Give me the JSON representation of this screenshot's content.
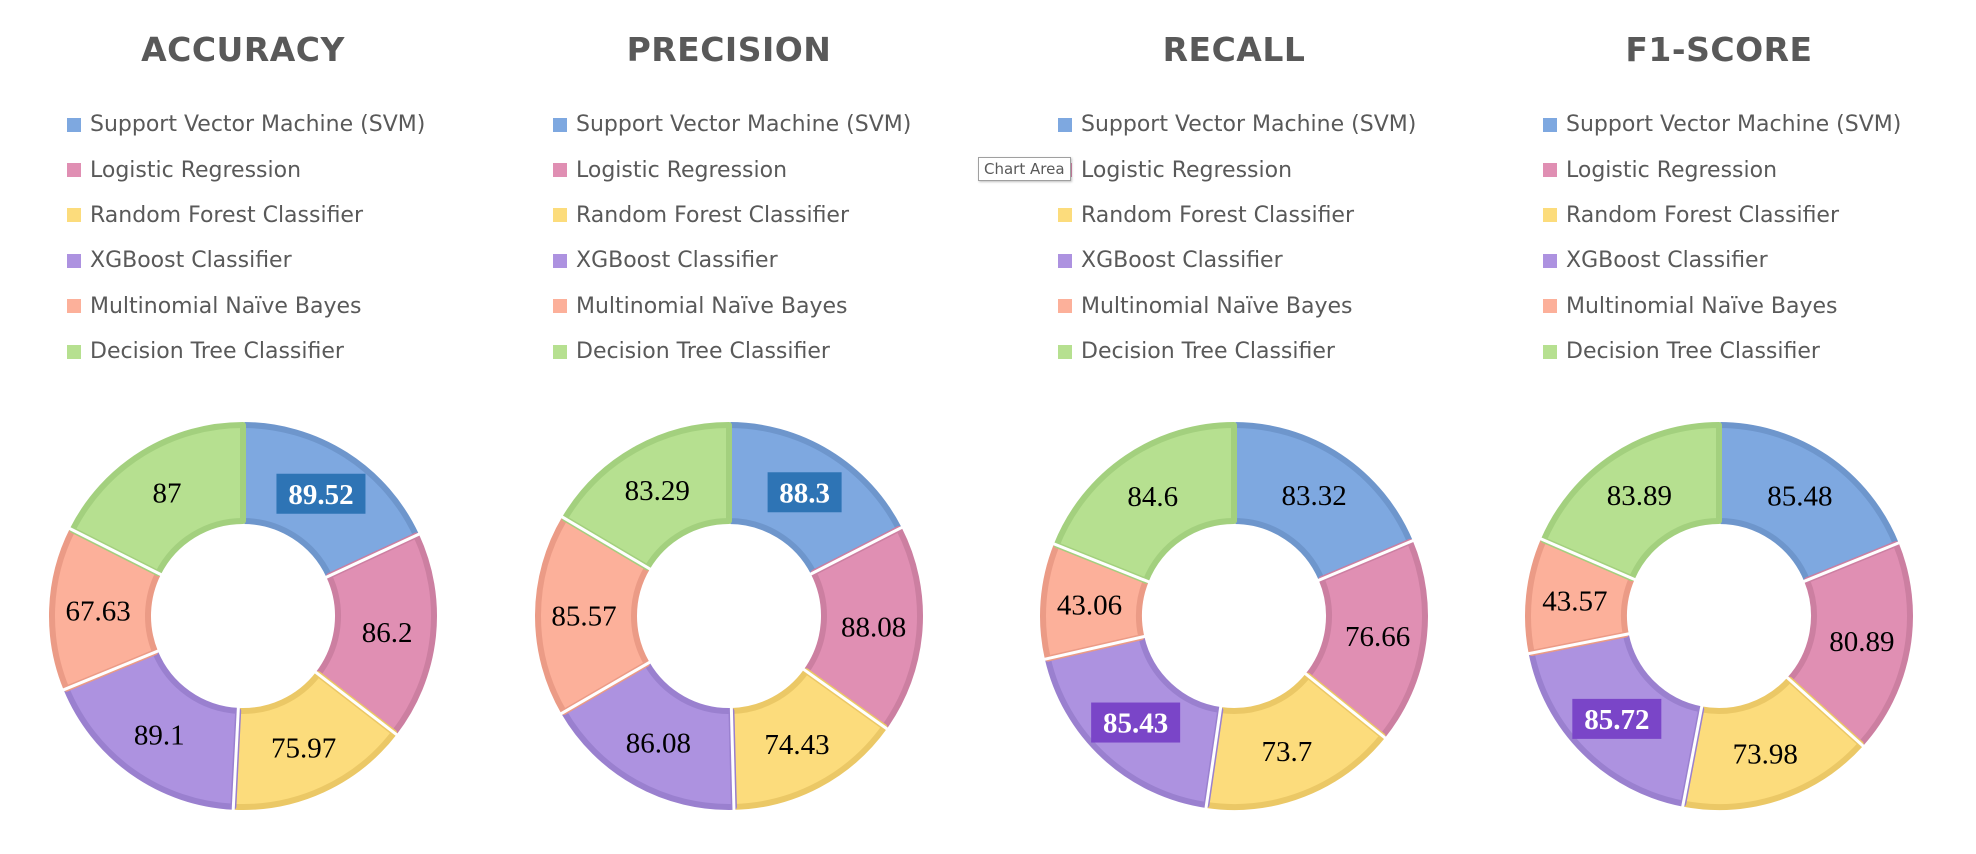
{
  "legend_labels": [
    "Support Vector Machine (SVM)",
    "Logistic Regression",
    "Random Forest Classifier",
    "XGBoost Classifier",
    "Multinomial Naïve Bayes",
    "Decision Tree Classifier"
  ],
  "colors": {
    "fill": [
      "#7ea8e0",
      "#e08fb3",
      "#fcdc7c",
      "#ad92e0",
      "#fcb09a",
      "#b6e090"
    ],
    "stroke": [
      "#6e96cc",
      "#cc7fa1",
      "#ebc866",
      "#9a80cf",
      "#eb9b86",
      "#a3d07e"
    ],
    "highlight_box": {
      "blue": "#2e74b5",
      "purple": "#7a45c8"
    }
  },
  "tooltip_label": "Chart Area",
  "chart_data": [
    {
      "type": "donut",
      "title": "ACCURACY",
      "categories": [
        "Support Vector Machine (SVM)",
        "Logistic Regression",
        "Random Forest Classifier",
        "XGBoost Classifier",
        "Multinomial Naïve Bayes",
        "Decision Tree Classifier"
      ],
      "values": [
        89.52,
        86.2,
        75.97,
        89.1,
        67.63,
        87
      ],
      "highlighted_index": 0,
      "highlight_color": "blue",
      "legend": "top"
    },
    {
      "type": "donut",
      "title": "PRECISION",
      "categories": [
        "Support Vector Machine (SVM)",
        "Logistic Regression",
        "Random Forest Classifier",
        "XGBoost Classifier",
        "Multinomial Naïve Bayes",
        "Decision Tree Classifier"
      ],
      "values": [
        88.3,
        88.08,
        74.43,
        86.08,
        85.57,
        83.29
      ],
      "highlighted_index": 0,
      "highlight_color": "blue",
      "legend": "top"
    },
    {
      "type": "donut",
      "title": "RECALL",
      "categories": [
        "Support Vector Machine (SVM)",
        "Logistic Regression",
        "Random Forest Classifier",
        "XGBoost Classifier",
        "Multinomial Naïve Bayes",
        "Decision Tree Classifier"
      ],
      "values": [
        83.32,
        76.66,
        73.7,
        85.43,
        43.06,
        84.6
      ],
      "highlighted_index": 3,
      "highlight_color": "purple",
      "legend": "top"
    },
    {
      "type": "donut",
      "title": "F1-SCORE",
      "categories": [
        "Support Vector Machine (SVM)",
        "Logistic Regression",
        "Random Forest Classifier",
        "XGBoost Classifier",
        "Multinomial Naïve Bayes",
        "Decision Tree Classifier"
      ],
      "values": [
        85.48,
        80.89,
        73.98,
        85.72,
        43.57,
        83.89
      ],
      "highlighted_index": 3,
      "highlight_color": "purple",
      "legend": "top"
    }
  ]
}
